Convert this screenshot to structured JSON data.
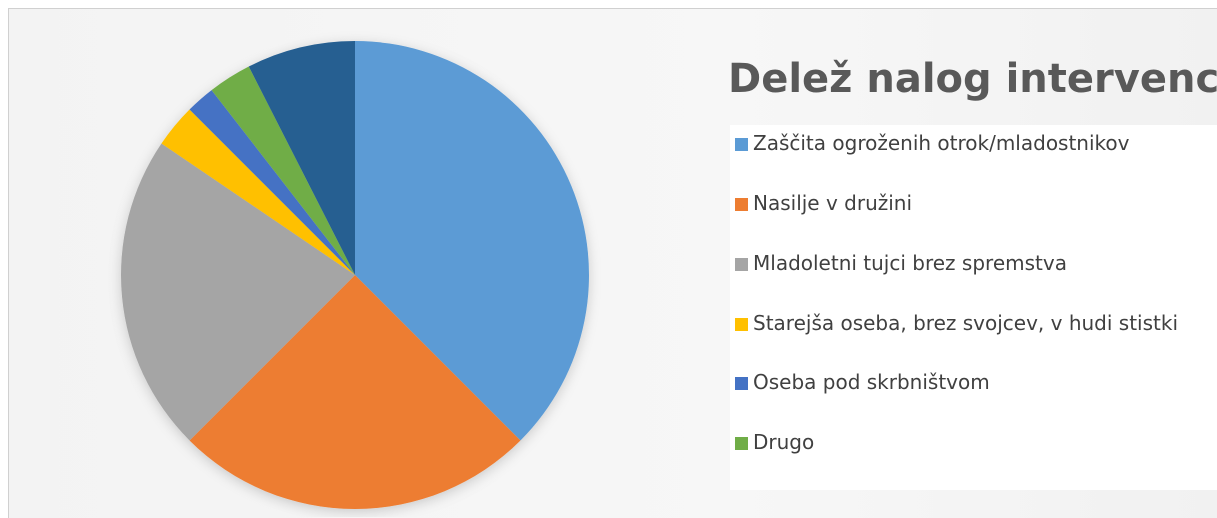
{
  "chart_data": {
    "type": "pie",
    "title": "Delež nalog intervencij",
    "categories": [
      "Zaščita ogroženih otrok/mladostnikov",
      "Nasilje v družini",
      "Mladoletni tujci brez spremstva",
      "Starejša oseba, brez svojcev, v hudi stistki",
      "Oseba pod skrbništvom",
      "Drugo",
      null
    ],
    "values": [
      37.5,
      25,
      22,
      3,
      2,
      3,
      7.5
    ],
    "colors": [
      "#5b9bd5",
      "#ed7d31",
      "#a5a5a5",
      "#ffc000",
      "#4472c4",
      "#70ad47",
      "#255e91"
    ]
  }
}
